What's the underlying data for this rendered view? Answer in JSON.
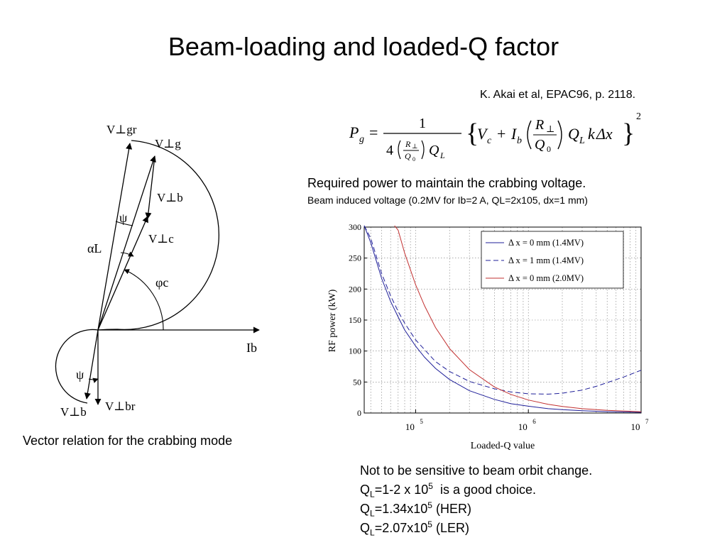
{
  "slide": {
    "title": "Beam-loading and loaded-Q factor",
    "citation": "K. Akai et al, EPAC96, p. 2118.",
    "required_power": "Required power to maintain the crabbing voltage.",
    "beam_induced": "Beam induced voltage (0.2MV for Ib=2 A, QL=2x105, dx=1 mm)",
    "vector_caption": "Vector relation for the crabbing mode",
    "notes": {
      "line1": "Not to be sensitive to beam orbit change.",
      "q": "Q",
      "l": "L",
      "line2_a": "=1-2 x 10",
      "line2_exp": "5",
      "line2_b": "  is a good choice.",
      "line3_a": "=1.34x10",
      "line3_exp": "5",
      "line3_b": " (HER)",
      "line4_a": "=2.07x10",
      "line4_exp": "5",
      "line4_b": " (LER)"
    }
  },
  "formula": {
    "lhs": "P",
    "lhs_sub": "g",
    "one": "1",
    "four": "4",
    "R": "R",
    "perp": "⊥",
    "Q": "Q",
    "zero": "0",
    "L": "L",
    "V": "V",
    "c": "c",
    "plus": "+",
    "I": "I",
    "b": "b",
    "k": "k",
    "delta_x": "Δx",
    "square": "2"
  },
  "vector_diagram": {
    "labels": {
      "v_gr": "V⊥gr",
      "v_g": "V⊥g",
      "v_b": "V⊥b",
      "v_c": "V⊥c",
      "psi_upper": "ψ",
      "alpha_l": "αL",
      "phi_c": "φc",
      "ib": "Ib",
      "psi_lower": "ψ",
      "v_b_lower": "V⊥b",
      "v_br": "V⊥br"
    }
  },
  "chart_data": {
    "type": "line",
    "xlabel": "Loaded-Q value",
    "ylabel": "RF power (kW)",
    "x_scale": "log",
    "xlim": [
      35000,
      10000000
    ],
    "ylim": [
      0,
      300
    ],
    "x_ticks": [
      {
        "base": "10",
        "exp": "5",
        "value": 100000
      },
      {
        "base": "10",
        "exp": "6",
        "value": 1000000
      },
      {
        "base": "10",
        "exp": "7",
        "value": 10000000
      }
    ],
    "y_ticks": [
      0,
      50,
      100,
      150,
      200,
      250,
      300
    ],
    "grid": true,
    "legend_position": "top-right",
    "series": [
      {
        "name": "Δ x = 0 mm (1.4MV)",
        "color": "#1f1f99",
        "style": "solid",
        "points": [
          [
            35000,
            305
          ],
          [
            40000,
            275
          ],
          [
            50000,
            217
          ],
          [
            60000,
            180
          ],
          [
            70000,
            155
          ],
          [
            80000,
            134
          ],
          [
            100000,
            108
          ],
          [
            120000,
            90
          ],
          [
            150000,
            72
          ],
          [
            200000,
            54
          ],
          [
            300000,
            36
          ],
          [
            500000,
            22
          ],
          [
            700000,
            15
          ],
          [
            1000000,
            11
          ],
          [
            1500000,
            7
          ],
          [
            2000000,
            5.5
          ],
          [
            3000000,
            3.7
          ],
          [
            5000000,
            2.2
          ],
          [
            10000000,
            1.1
          ]
        ]
      },
      {
        "name": "Δ x = 1 mm (1.4MV)",
        "color": "#1f1f99",
        "style": "dashed",
        "points": [
          [
            35000,
            305
          ],
          [
            40000,
            282
          ],
          [
            50000,
            225
          ],
          [
            60000,
            189
          ],
          [
            70000,
            164
          ],
          [
            80000,
            145
          ],
          [
            100000,
            118
          ],
          [
            150000,
            83
          ],
          [
            200000,
            67
          ],
          [
            300000,
            51
          ],
          [
            500000,
            39
          ],
          [
            700000,
            34
          ],
          [
            1000000,
            31
          ],
          [
            1500000,
            30.5
          ],
          [
            2000000,
            32
          ],
          [
            3000000,
            37
          ],
          [
            4000000,
            43
          ],
          [
            5000000,
            49
          ],
          [
            7000000,
            58
          ],
          [
            10000000,
            69
          ]
        ]
      },
      {
        "name": "Δ x = 0 mm (2.0MV)",
        "color": "#c23030",
        "style": "solid",
        "points": [
          [
            65000,
            305
          ],
          [
            70000,
            295
          ],
          [
            80000,
            258
          ],
          [
            100000,
            207
          ],
          [
            120000,
            173
          ],
          [
            150000,
            138
          ],
          [
            200000,
            104
          ],
          [
            300000,
            70
          ],
          [
            500000,
            42
          ],
          [
            700000,
            30
          ],
          [
            1000000,
            21
          ],
          [
            1500000,
            14
          ],
          [
            2000000,
            10.5
          ],
          [
            3000000,
            7
          ],
          [
            5000000,
            4.2
          ],
          [
            10000000,
            2.1
          ]
        ]
      }
    ]
  }
}
